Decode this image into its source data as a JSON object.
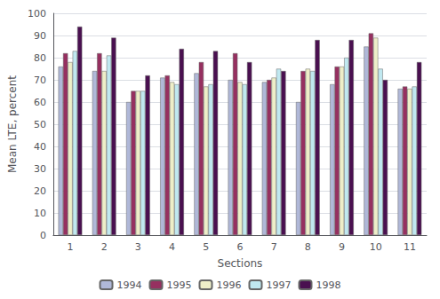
{
  "chart_data": {
    "type": "bar",
    "xlabel": "Sections",
    "ylabel": "Mean LTE, percent",
    "categories": [
      "1",
      "2",
      "3",
      "4",
      "5",
      "6",
      "7",
      "8",
      "9",
      "10",
      "11"
    ],
    "series": [
      {
        "name": "1994",
        "color": "#b0b8d8",
        "values": [
          76,
          74,
          60,
          71,
          73,
          70,
          69,
          60,
          68,
          85,
          66
        ]
      },
      {
        "name": "1995",
        "color": "#963060",
        "values": [
          82,
          82,
          65,
          72,
          78,
          82,
          70,
          74,
          76,
          91,
          67
        ]
      },
      {
        "name": "1996",
        "color": "#eeeec8",
        "values": [
          78,
          74,
          65,
          69,
          67,
          69,
          71,
          75,
          76,
          89,
          66
        ]
      },
      {
        "name": "1997",
        "color": "#c0e8f0",
        "values": [
          83,
          81,
          65,
          68,
          68,
          68,
          75,
          74,
          80,
          75,
          67
        ]
      },
      {
        "name": "1998",
        "color": "#4a1050",
        "values": [
          94,
          89,
          72,
          84,
          83,
          78,
          74,
          88,
          88,
          70,
          78
        ]
      }
    ],
    "ylim": [
      0,
      100
    ],
    "yticks": [
      0,
      10,
      20,
      30,
      40,
      50,
      60,
      70,
      80,
      90,
      100
    ],
    "grid": true,
    "legend": "bottom"
  }
}
